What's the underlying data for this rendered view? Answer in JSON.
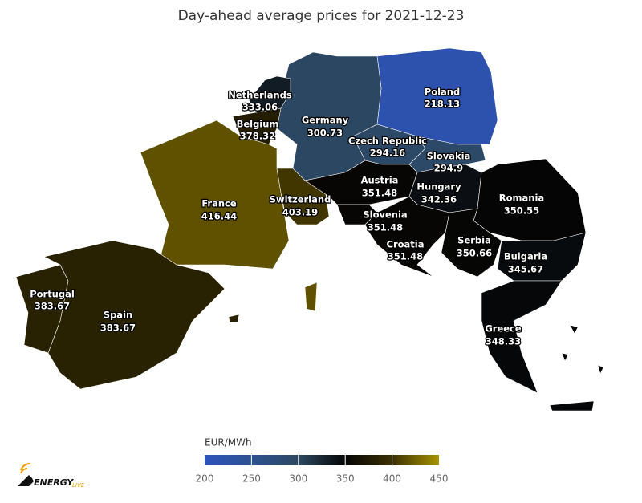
{
  "title": "Day-ahead average prices for 2021-12-23",
  "countries": [
    {
      "name": "Poland",
      "value": 218.13
    },
    {
      "name": "Germany",
      "value": 300.73
    },
    {
      "name": "Netherlands",
      "value": 333.06
    },
    {
      "name": "Belgium",
      "value": 378.32
    },
    {
      "name": "Czech Republic",
      "value": 294.16
    },
    {
      "name": "Slovakia",
      "value": 294.9
    },
    {
      "name": "France",
      "value": 416.44
    },
    {
      "name": "Switzerland",
      "value": 403.19
    },
    {
      "name": "Austria",
      "value": 351.48
    },
    {
      "name": "Hungary",
      "value": 342.36
    },
    {
      "name": "Romania",
      "value": 350.55
    },
    {
      "name": "Slovenia",
      "value": 351.48
    },
    {
      "name": "Croatia",
      "value": 351.48
    },
    {
      "name": "Serbia",
      "value": 350.66
    },
    {
      "name": "Bulgaria",
      "value": 345.67
    },
    {
      "name": "Portugal",
      "value": 383.67
    },
    {
      "name": "Spain",
      "value": 383.67
    },
    {
      "name": "Greece",
      "value": 348.33
    }
  ],
  "colorbar": {
    "title": "EUR/MWh",
    "lim": [
      200,
      450
    ],
    "ticks": [
      200,
      250,
      300,
      350,
      400,
      450
    ],
    "colors": [
      "#2d52bd",
      "#2d5190",
      "#2c4862",
      "#050505",
      "#3b3000",
      "#a89400"
    ]
  },
  "logo": {
    "text": "ENERGY",
    "suffix": "LIVE"
  }
}
